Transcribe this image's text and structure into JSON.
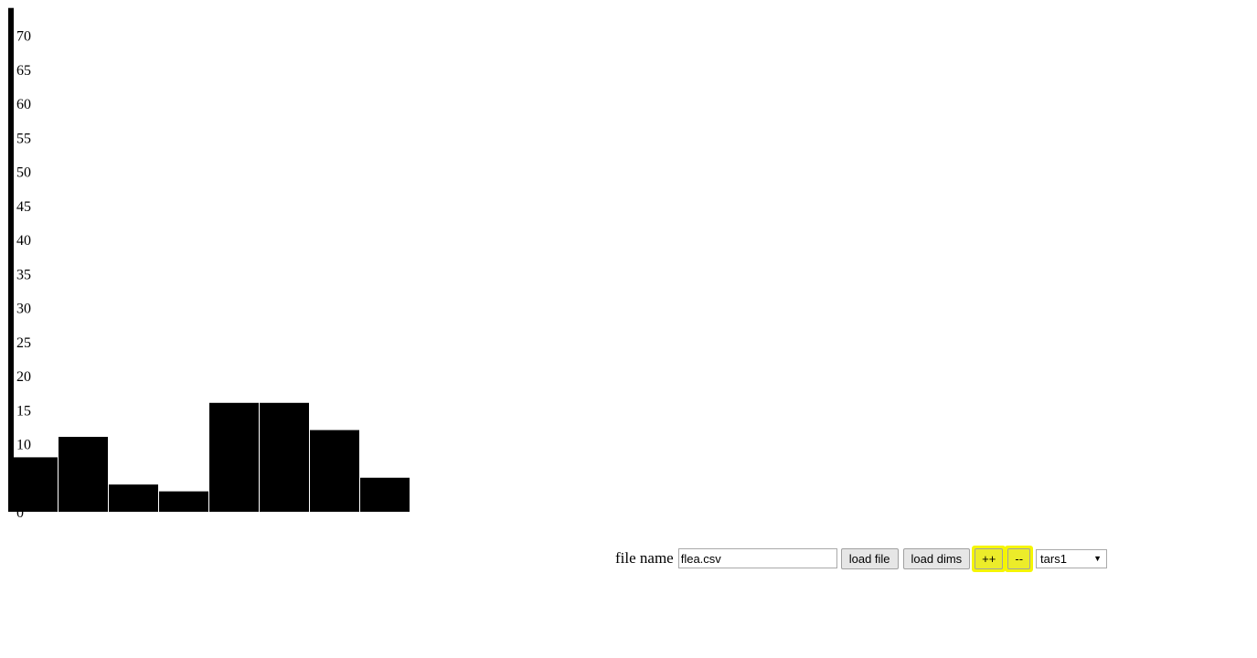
{
  "chart_data": {
    "type": "bar",
    "values": [
      8,
      11,
      4,
      3,
      16,
      16,
      12,
      5
    ],
    "ylim": [
      0,
      74
    ],
    "y_ticks": [
      0,
      10,
      15,
      20,
      25,
      30,
      35,
      40,
      45,
      50,
      55,
      60,
      65,
      70
    ],
    "bar_color": "#000000"
  },
  "controls": {
    "file_label": "file name",
    "file_value": "flea.csv",
    "load_file_label": "load file",
    "load_dims_label": "load dims",
    "increase_label": "++",
    "decrease_label": "--",
    "dimension_selected": "tars1",
    "dropdown_arrow": "▼",
    "highlight_color": "#f5f500"
  }
}
